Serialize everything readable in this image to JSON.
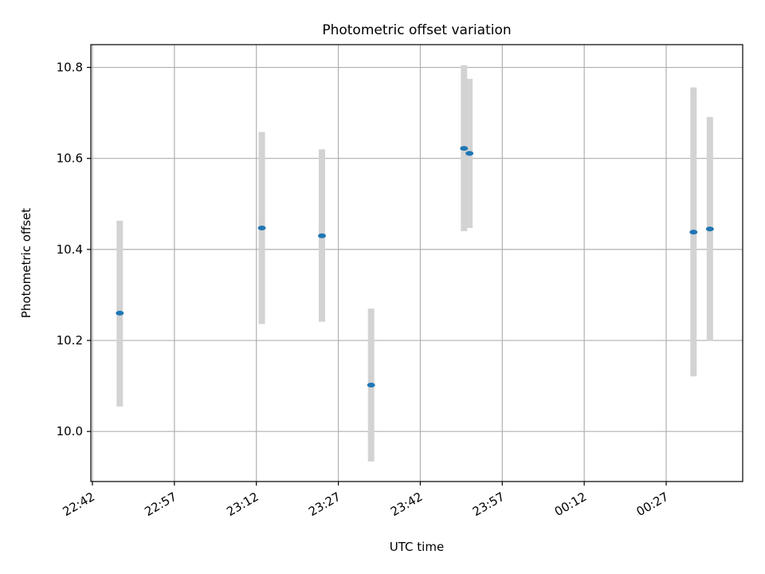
{
  "chart_data": {
    "type": "scatter",
    "title": "Photometric offset variation",
    "xlabel": "UTC time",
    "ylabel": "Photometric offset",
    "grid": true,
    "x_ticks": [
      "22:42",
      "22:57",
      "23:12",
      "23:27",
      "23:42",
      "23:57",
      "00:12",
      "00:27"
    ],
    "y_ticks": [
      "10.0",
      "10.2",
      "10.4",
      "10.6",
      "10.8"
    ],
    "ylim": [
      9.89,
      10.85
    ],
    "xlim": [
      "22:42",
      "00:41"
    ],
    "series": [
      {
        "marker_color": "#1f77b4",
        "errorbar_color": "#d3d3d3",
        "points": [
          {
            "x": "22:47",
            "y": 10.26,
            "yerr_low": 10.055,
            "yerr_high": 10.463
          },
          {
            "x": "23:13",
            "y": 10.447,
            "yerr_low": 10.236,
            "yerr_high": 10.658
          },
          {
            "x": "23:24",
            "y": 10.43,
            "yerr_low": 10.241,
            "yerr_high": 10.62
          },
          {
            "x": "23:33",
            "y": 10.102,
            "yerr_low": 9.934,
            "yerr_high": 10.27
          },
          {
            "x": "23:50",
            "y": 10.622,
            "yerr_low": 10.44,
            "yerr_high": 10.805
          },
          {
            "x": "23:51",
            "y": 10.611,
            "yerr_low": 10.447,
            "yerr_high": 10.775
          },
          {
            "x": "00:32",
            "y": 10.438,
            "yerr_low": 10.121,
            "yerr_high": 10.756
          },
          {
            "x": "00:35",
            "y": 10.445,
            "yerr_low": 10.199,
            "yerr_high": 10.691
          }
        ]
      }
    ]
  }
}
